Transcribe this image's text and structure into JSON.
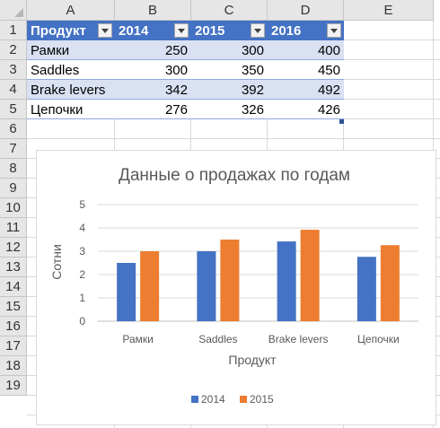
{
  "columns": [
    "A",
    "B",
    "C",
    "D",
    "E"
  ],
  "rows": [
    "1",
    "2",
    "3",
    "4",
    "5",
    "6",
    "7",
    "8",
    "9",
    "10",
    "11",
    "12",
    "13",
    "14",
    "15",
    "16",
    "17",
    "18",
    "19"
  ],
  "table": {
    "headers": [
      "Продукт",
      "2014",
      "2015",
      "2016"
    ],
    "rows": [
      {
        "name": "Рамки",
        "v2014": "250",
        "v2015": "300",
        "v2016": "400"
      },
      {
        "name": "Saddles",
        "v2014": "300",
        "v2015": "350",
        "v2016": "450"
      },
      {
        "name": "Brake levers",
        "v2014": "342",
        "v2015": "392",
        "v2016": "492"
      },
      {
        "name": "Цепочки",
        "v2014": "276",
        "v2015": "326",
        "v2016": "426"
      }
    ]
  },
  "colors": {
    "header_blue": "#4472c4",
    "band": "#d9e1f2",
    "series_2014": "#4472c4",
    "series_2015": "#ed7d31"
  },
  "chart_data": {
    "type": "bar",
    "title": "Данные о продажах по годам",
    "xlabel": "Продукт",
    "ylabel": "Сотни",
    "categories": [
      "Рамки",
      "Saddles",
      "Brake levers",
      "Цепочки"
    ],
    "series": [
      {
        "name": "2014",
        "values": [
          2.5,
          3.0,
          3.42,
          2.76
        ]
      },
      {
        "name": "2015",
        "values": [
          3.0,
          3.5,
          3.92,
          3.26
        ]
      }
    ],
    "yticks": [
      "0",
      "1",
      "2",
      "3",
      "4",
      "5"
    ],
    "ylim": [
      0,
      5
    ],
    "grid": true,
    "legend": "bottom"
  }
}
